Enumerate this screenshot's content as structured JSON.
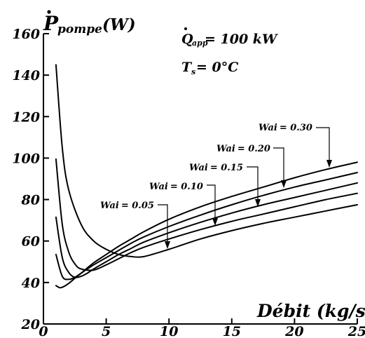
{
  "chart_data": {
    "type": "line",
    "ylabel": "Ṗpompe (W)",
    "ylabel_main": "P",
    "ylabel_sub": "pompe",
    "ylabel_unit": "(W)",
    "xlabel": "Débit (kg/s)",
    "xlim": [
      0,
      25
    ],
    "ylim": [
      20,
      160
    ],
    "xticks": [
      0,
      5,
      10,
      15,
      20,
      25
    ],
    "yticks": [
      20,
      40,
      60,
      80,
      100,
      120,
      140,
      160
    ],
    "grid": false,
    "annotations": {
      "q_main": "Q",
      "q_sub": "app",
      "q_value": " = 100 kW",
      "ts_main": "T",
      "ts_sub": "s",
      "ts_value": "  =  0°C"
    },
    "series_label_prefix": "Wai",
    "series": [
      {
        "name": "Wai = 0.05",
        "label_text": "= 0.05",
        "x": [
          1,
          1.5,
          2,
          3,
          4,
          5,
          6,
          7,
          8,
          10,
          12.5,
          15,
          17.5,
          20,
          22.5,
          25
        ],
        "y": [
          145,
          105,
          85,
          68,
          60,
          56,
          53.5,
          52.5,
          52.5,
          56,
          61,
          65,
          68.5,
          71.5,
          74.5,
          77.5
        ]
      },
      {
        "name": "Wai = 0.10",
        "label_text": "= 0.10",
        "x": [
          1,
          1.5,
          2,
          2.5,
          3,
          4,
          5,
          6,
          7,
          8,
          10,
          12.5,
          15,
          17.5,
          20,
          22.5,
          25
        ],
        "y": [
          99.5,
          68,
          55,
          49,
          46.5,
          46,
          48.5,
          51.5,
          54.5,
          57,
          61,
          65.5,
          69.5,
          73,
          76.5,
          80,
          83
        ]
      },
      {
        "name": "Wai = 0.15",
        "label_text": "= 0.15",
        "x": [
          1,
          1.5,
          2,
          2.5,
          3,
          3.5,
          4,
          5,
          6,
          7,
          8,
          10,
          12.5,
          15,
          17.5,
          20,
          22.5,
          25
        ],
        "y": [
          71.5,
          52,
          45,
          42.5,
          43,
          44.5,
          46.5,
          50,
          53.5,
          56.5,
          59.5,
          64,
          69,
          73.5,
          77.5,
          81,
          84.5,
          88
        ]
      },
      {
        "name": "Wai = 0.20",
        "label_text": "= 0.20",
        "x": [
          1,
          1.5,
          2,
          2.5,
          3,
          4,
          5,
          6,
          7,
          8,
          10,
          12.5,
          15,
          17.5,
          20,
          22.5,
          25
        ],
        "y": [
          53.5,
          43,
          41.5,
          42.5,
          44.5,
          48.5,
          52,
          55.5,
          59,
          62,
          67,
          72.5,
          77.5,
          82,
          86,
          89.5,
          93
        ]
      },
      {
        "name": "Wai = 0.30",
        "label_text": "= 0.30",
        "x": [
          1,
          1.3,
          1.6,
          2,
          2.5,
          3,
          4,
          5,
          6,
          7,
          8,
          10,
          12.5,
          15,
          17.5,
          20,
          22.5,
          25
        ],
        "y": [
          38.5,
          37.5,
          38,
          39.5,
          42,
          44.5,
          49.5,
          53.5,
          57.5,
          61,
          64.5,
          70.5,
          76.5,
          81.5,
          86,
          90.5,
          94.5,
          98
        ]
      }
    ]
  }
}
